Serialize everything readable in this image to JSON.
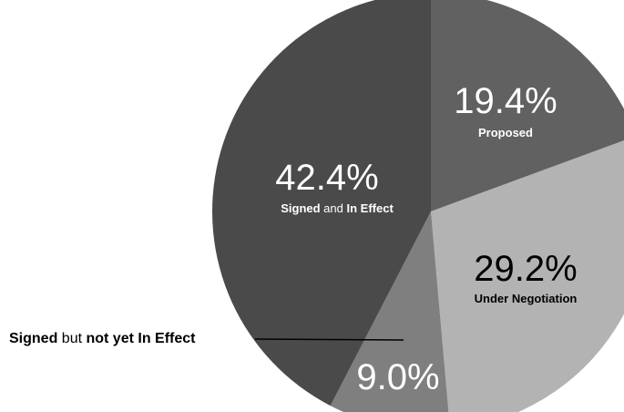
{
  "chart_data": {
    "type": "pie",
    "title": "",
    "slices": [
      {
        "value": 19.4,
        "value_label": "19.4%",
        "label_parts": [
          {
            "text": "Proposed",
            "bold": true
          }
        ],
        "color": "#616161",
        "text_color": "#ffffff"
      },
      {
        "value": 29.2,
        "value_label": "29.2%",
        "label_parts": [
          {
            "text": "Under Negotiation",
            "bold": true
          }
        ],
        "color": "#b3b3b3",
        "text_color": "#000000"
      },
      {
        "value": 9.0,
        "value_label": "9.0%",
        "label_parts": [
          {
            "text": "Signed",
            "bold": true
          },
          {
            "text": " but ",
            "bold": false
          },
          {
            "text": "not yet In Effect",
            "bold": true
          }
        ],
        "label_outside": true,
        "color": "#7f7f7f",
        "text_color": "#ffffff"
      },
      {
        "value": 42.4,
        "value_label": "42.4%",
        "label_parts": [
          {
            "text": "Signed",
            "bold": true
          },
          {
            "text": " and ",
            "bold": false
          },
          {
            "text": "In Effect",
            "bold": true
          }
        ],
        "color": "#4a4a4a",
        "text_color": "#ffffff"
      }
    ]
  }
}
